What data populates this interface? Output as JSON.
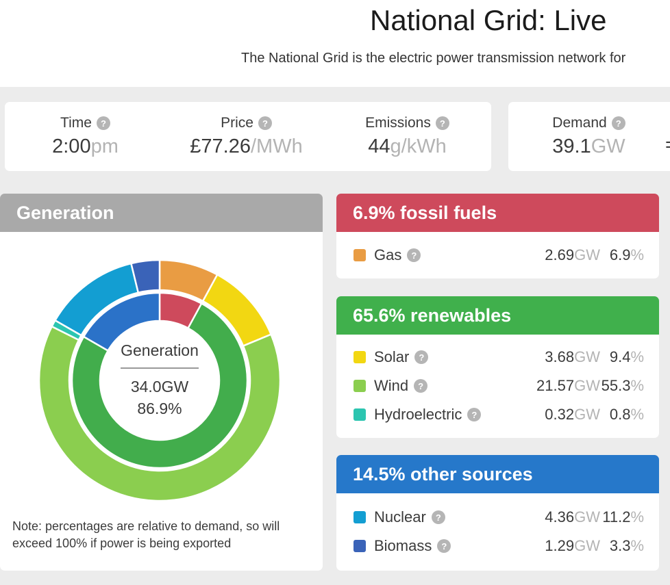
{
  "page": {
    "title": "National Grid: Live",
    "subtitle": "The National Grid is the electric power transmission network for",
    "background_color": "#ececec"
  },
  "icons": {
    "help_glyph": "?"
  },
  "stats_primary": [
    {
      "label": "Time",
      "value": "2:00",
      "unit": "pm"
    },
    {
      "label": "Price",
      "value": "£77.26",
      "unit": "/MWh"
    },
    {
      "label": "Emissions",
      "value": "44",
      "unit": "g/kWh"
    }
  ],
  "stats_secondary": {
    "demand": {
      "label": "Demand",
      "value": "39.1",
      "unit": "GW"
    },
    "equation_fragment": "="
  },
  "generation_panel": {
    "header": "Generation",
    "header_color": "#a9a9a9",
    "note_line1": "Note: percentages are relative to demand, so will",
    "note_line2": "exceed 100% if power is being exported"
  },
  "donut_center": {
    "label": "Generation",
    "value": "34.0GW",
    "percent": "86.9%"
  },
  "groups": [
    {
      "header": "6.9% fossil fuels",
      "color": "#ce4a5c",
      "rows": [
        {
          "label": "Gas",
          "color": "#e99c43",
          "value": "2.69",
          "unit": "GW",
          "percent": "6.9",
          "percent_unit": "%"
        }
      ]
    },
    {
      "header": "65.6% renewables",
      "color": "#40b04c",
      "rows": [
        {
          "label": "Solar",
          "color": "#f2d712",
          "value": "3.68",
          "unit": "GW",
          "percent": "9.4",
          "percent_unit": "%"
        },
        {
          "label": "Wind",
          "color": "#8bce4f",
          "value": "21.57",
          "unit": "GW",
          "percent": "55.3",
          "percent_unit": "%"
        },
        {
          "label": "Hydroelectric",
          "color": "#2cc5b0",
          "value": "0.32",
          "unit": "GW",
          "percent": "0.8",
          "percent_unit": "%"
        }
      ]
    },
    {
      "header": "14.5% other sources",
      "color": "#2678ca",
      "rows": [
        {
          "label": "Nuclear",
          "color": "#139ed2",
          "value": "4.36",
          "unit": "GW",
          "percent": "11.2",
          "percent_unit": "%"
        },
        {
          "label": "Biomass",
          "color": "#3a63b8",
          "value": "1.29",
          "unit": "GW",
          "percent": "3.3",
          "percent_unit": "%"
        }
      ]
    }
  ],
  "chart_data": {
    "type": "donut",
    "title": "Generation",
    "units": "percent of demand",
    "start_angle": "top",
    "direction": "clockwise",
    "center": {
      "label": "Generation",
      "generation_gw": 34.0,
      "percent_of_demand": 86.9
    },
    "outer_ring": {
      "name": "sources",
      "segments": [
        {
          "label": "Gas",
          "gw": 2.69,
          "percent": 6.9,
          "color": "#e99c43"
        },
        {
          "label": "Solar",
          "gw": 3.68,
          "percent": 9.4,
          "color": "#f2d712"
        },
        {
          "label": "Wind",
          "gw": 21.57,
          "percent": 55.3,
          "color": "#8bce4f"
        },
        {
          "label": "Hydroelectric",
          "gw": 0.32,
          "percent": 0.8,
          "color": "#2cc5b0"
        },
        {
          "label": "Nuclear",
          "gw": 4.36,
          "percent": 11.2,
          "color": "#139ed2"
        },
        {
          "label": "Biomass",
          "gw": 1.29,
          "percent": 3.3,
          "color": "#3a63b8"
        }
      ]
    },
    "inner_ring": {
      "name": "groups",
      "segments": [
        {
          "label": "fossil fuels",
          "percent": 6.9,
          "color": "#ce4a5c"
        },
        {
          "label": "renewables",
          "percent": 65.6,
          "color": "#42ad4c"
        },
        {
          "label": "other sources",
          "percent": 14.5,
          "color": "#2b72c8"
        }
      ]
    }
  }
}
